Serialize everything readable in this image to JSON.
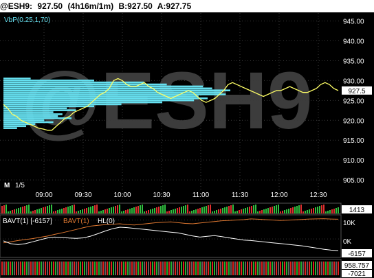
{
  "title_bar": {
    "symbol": "@ESH9:",
    "last": "927.50",
    "interval": "(4h16m/1m)",
    "bid": "B:927.50",
    "ask": "A:927.75"
  },
  "watermark": "@ESH9",
  "colors": {
    "price_line": "#ffff66",
    "vbp": "#66e0f0",
    "grid": "#3a3a3a",
    "bavt_a": "#e07830",
    "bavt_b": "#ffffff",
    "last_box": "#ffffff"
  },
  "chart_data": [
    {
      "type": "line",
      "name": "price-panel",
      "indicator_label": "VbP(0.25,1,70)",
      "period_label": "M",
      "period_value": "1/5",
      "ylim": [
        900,
        947
      ],
      "y_ticks": [
        "945.00",
        "940.00",
        "935.00",
        "930.00",
        "925.00",
        "920.00",
        "915.00",
        "910.00",
        "905.00"
      ],
      "x_ticks": [
        "09:00",
        "09:30",
        "10:00",
        "10:30",
        "11:00",
        "11:30",
        "12:00",
        "12:30"
      ],
      "last_value": "927.5",
      "x": [
        0,
        6,
        12,
        18,
        24,
        30,
        36,
        42,
        48,
        54,
        60,
        66,
        72,
        78,
        84,
        90,
        96,
        102,
        108,
        114,
        120,
        126,
        132,
        138,
        144,
        150,
        156,
        162,
        168,
        174,
        180,
        186,
        192,
        198,
        204,
        210,
        216,
        222,
        228,
        234,
        240,
        246,
        252,
        258,
        264,
        270,
        276,
        282,
        288,
        294,
        300,
        306,
        312,
        318,
        324,
        330,
        336,
        342,
        348,
        354,
        360,
        366,
        372,
        378,
        384,
        390,
        396,
        402,
        408,
        414,
        420,
        426,
        432,
        438,
        444,
        450,
        456
      ],
      "values": [
        924.0,
        923.0,
        921.5,
        921.0,
        920.0,
        919.5,
        919.0,
        918.5,
        918.0,
        917.8,
        917.5,
        917.5,
        918.5,
        919.5,
        920.5,
        921.0,
        922.0,
        922.5,
        923.0,
        923.5,
        924.5,
        925.5,
        926.5,
        927.0,
        928.0,
        930.0,
        930.5,
        930.0,
        929.0,
        928.5,
        928.5,
        929.0,
        929.5,
        928.5,
        928.0,
        927.0,
        926.5,
        926.0,
        925.5,
        926.0,
        926.5,
        927.0,
        927.5,
        927.0,
        926.0,
        925.0,
        924.5,
        925.0,
        925.5,
        926.5,
        927.5,
        929.0,
        929.5,
        929.0,
        928.5,
        928.0,
        927.5,
        927.0,
        926.5,
        926.0,
        926.5,
        927.0,
        927.5,
        927.5,
        928.0,
        928.5,
        928.0,
        927.5,
        927.0,
        927.0,
        927.5,
        928.0,
        929.0,
        929.5,
        929.0,
        928.0,
        927.5
      ],
      "vbp_levels": [
        930.5,
        930.0,
        929.5,
        929.0,
        928.5,
        928.0,
        927.5,
        927.0,
        926.5,
        926.0,
        925.5,
        925.0,
        924.5,
        924.0,
        923.5,
        923.0,
        922.5,
        922.0,
        921.5,
        921.0,
        920.5,
        920.0,
        919.5,
        919.0,
        918.5,
        918.0
      ],
      "vbp_volume": [
        12,
        40,
        62,
        72,
        88,
        92,
        100,
        96,
        98,
        86,
        90,
        84,
        70,
        52,
        40,
        28,
        32,
        22,
        26,
        24,
        30,
        18,
        22,
        14,
        10,
        6
      ]
    },
    {
      "type": "bar",
      "name": "volume-panel",
      "last_value": "1413"
    },
    {
      "type": "line",
      "name": "bavt-panel",
      "label_a": "BAVT(1)",
      "label_a_value": "[-6157]",
      "label_b": "BAVT(1)",
      "label_c": "HL(0)",
      "y_ticks": [
        "10K",
        "0K",
        "-6157"
      ],
      "ylim": [
        -9000,
        12000
      ],
      "series_a": [
        -2000,
        -1500,
        -800,
        -300,
        200,
        900,
        1500,
        2400,
        3200,
        4100,
        5000,
        6000,
        6800,
        7200,
        7600,
        7800,
        8000,
        7600,
        7400,
        7800,
        8200,
        8600,
        8800,
        9000,
        8600,
        8200,
        8000,
        8400,
        8800,
        9200,
        9600,
        9800,
        10000,
        10200,
        10600,
        10400,
        10200,
        10000,
        9800,
        9900,
        10100,
        10300,
        10500,
        10600,
        10700,
        10500,
        10400
      ],
      "series_b": [
        -1000,
        -2500,
        -3000,
        -2500,
        -1500,
        -500,
        500,
        1000,
        800,
        500,
        300,
        600,
        1500,
        2800,
        4200,
        5400,
        6200,
        6000,
        5600,
        5200,
        4800,
        4400,
        4000,
        3600,
        3200,
        2400,
        1600,
        1000,
        1400,
        1800,
        1200,
        600,
        0,
        -600,
        -800,
        -1200,
        -1600,
        -2000,
        -2400,
        -2800,
        -3200,
        -3600,
        -4200,
        -4800,
        -5400,
        -5900,
        -6157
      ]
    },
    {
      "type": "bar",
      "name": "bottom-panel",
      "last_value": "958.757",
      "second_value": "-7021"
    }
  ]
}
